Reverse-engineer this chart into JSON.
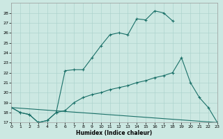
{
  "xlabel": "Humidex (Indice chaleur)",
  "background_color": "#cce8e2",
  "grid_color": "#a8d0ca",
  "line_color": "#1a7068",
  "xlim": [
    0,
    23
  ],
  "ylim": [
    17,
    29
  ],
  "xticks": [
    0,
    1,
    2,
    3,
    4,
    5,
    6,
    7,
    8,
    9,
    10,
    11,
    12,
    13,
    14,
    15,
    16,
    17,
    18,
    19,
    20,
    21,
    22,
    23
  ],
  "yticks": [
    17,
    18,
    19,
    20,
    21,
    22,
    23,
    24,
    25,
    26,
    27,
    28
  ],
  "curve1_x": [
    0,
    1,
    2,
    3,
    4,
    5,
    6,
    7,
    8,
    9,
    10,
    11,
    12,
    13,
    14,
    15,
    16,
    17,
    18
  ],
  "curve1_y": [
    18.5,
    18.0,
    17.8,
    17.0,
    17.2,
    18.0,
    22.2,
    22.3,
    22.3,
    23.5,
    24.7,
    25.8,
    26.0,
    25.8,
    27.4,
    27.3,
    28.2,
    28.0,
    27.2
  ],
  "curve2_x": [
    0,
    1,
    2,
    3,
    4,
    5,
    6,
    7,
    8,
    9,
    10,
    11,
    12,
    13,
    14,
    15,
    16,
    17,
    18,
    19,
    20,
    21,
    22,
    23
  ],
  "curve2_y": [
    18.5,
    18.0,
    17.8,
    17.0,
    17.2,
    18.0,
    18.2,
    19.0,
    19.5,
    19.8,
    20.0,
    20.3,
    20.5,
    20.7,
    21.0,
    21.2,
    21.5,
    21.7,
    22.0,
    23.5,
    21.0,
    19.5,
    18.5,
    17.0
  ],
  "curve3_x": [
    0,
    23
  ],
  "curve3_y": [
    18.5,
    17.0
  ]
}
